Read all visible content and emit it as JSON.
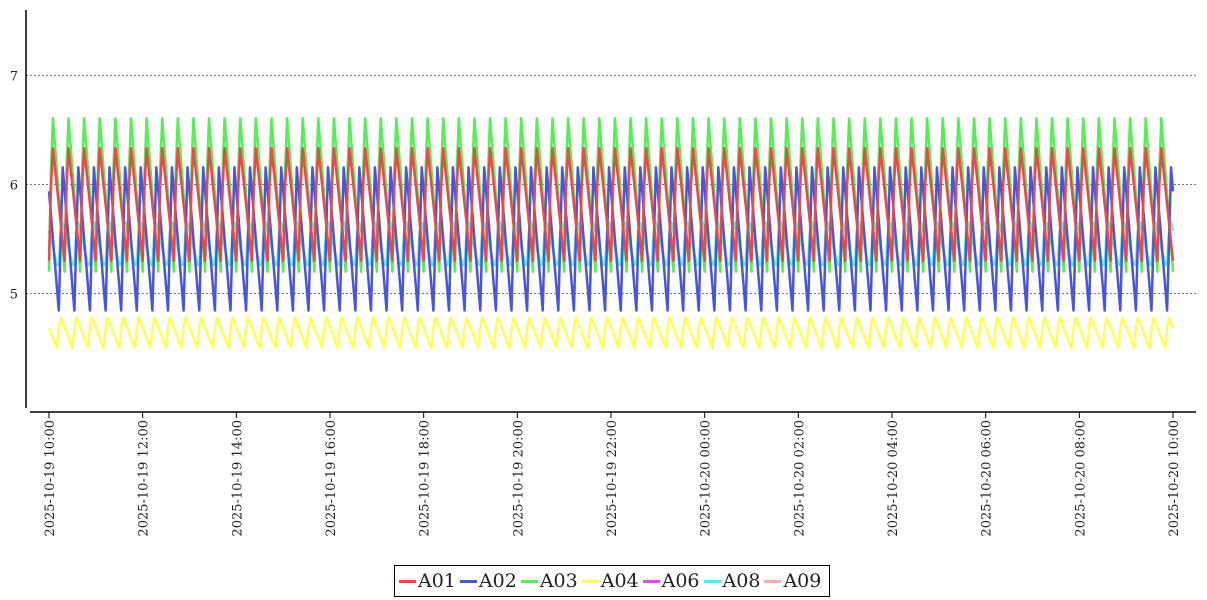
{
  "chart_data": {
    "type": "line",
    "title": "",
    "xlabel": "",
    "ylabel": "",
    "x_start": "2025-10-19 10:00",
    "x_end": "2025-10-20 10:00",
    "x_ticks": [
      "2025-10-19 10:00",
      "2025-10-19 12:00",
      "2025-10-19 14:00",
      "2025-10-19 16:00",
      "2025-10-19 18:00",
      "2025-10-19 20:00",
      "2025-10-19 22:00",
      "2025-10-20 00:00",
      "2025-10-20 02:00",
      "2025-10-20 04:00",
      "2025-10-20 06:00",
      "2025-10-20 08:00",
      "2025-10-20 10:00"
    ],
    "y_ticks": [
      5,
      6,
      7
    ],
    "ylim": [
      3.95,
      7.6
    ],
    "grid": "horizontal dotted",
    "legend": "bottom-center",
    "cycle_minutes": 20,
    "series": [
      {
        "name": "A01",
        "color": "#e84a4a",
        "min": 5.3,
        "max": 6.4
      },
      {
        "name": "A02",
        "color": "#4a55dd",
        "min": 4.8,
        "max": 6.2
      },
      {
        "name": "A03",
        "color": "#55ee55",
        "min": 5.2,
        "max": 6.7
      },
      {
        "name": "A04",
        "color": "#ffff55",
        "min": 4.5,
        "max": 4.8
      },
      {
        "name": "A06",
        "color": "#ee44ee",
        "min": null,
        "max": null
      },
      {
        "name": "A08",
        "color": "#55eeee",
        "min": 5.2,
        "max": 5.7
      },
      {
        "name": "A09",
        "color": "#ffaaaa",
        "min": null,
        "max": null
      }
    ]
  }
}
